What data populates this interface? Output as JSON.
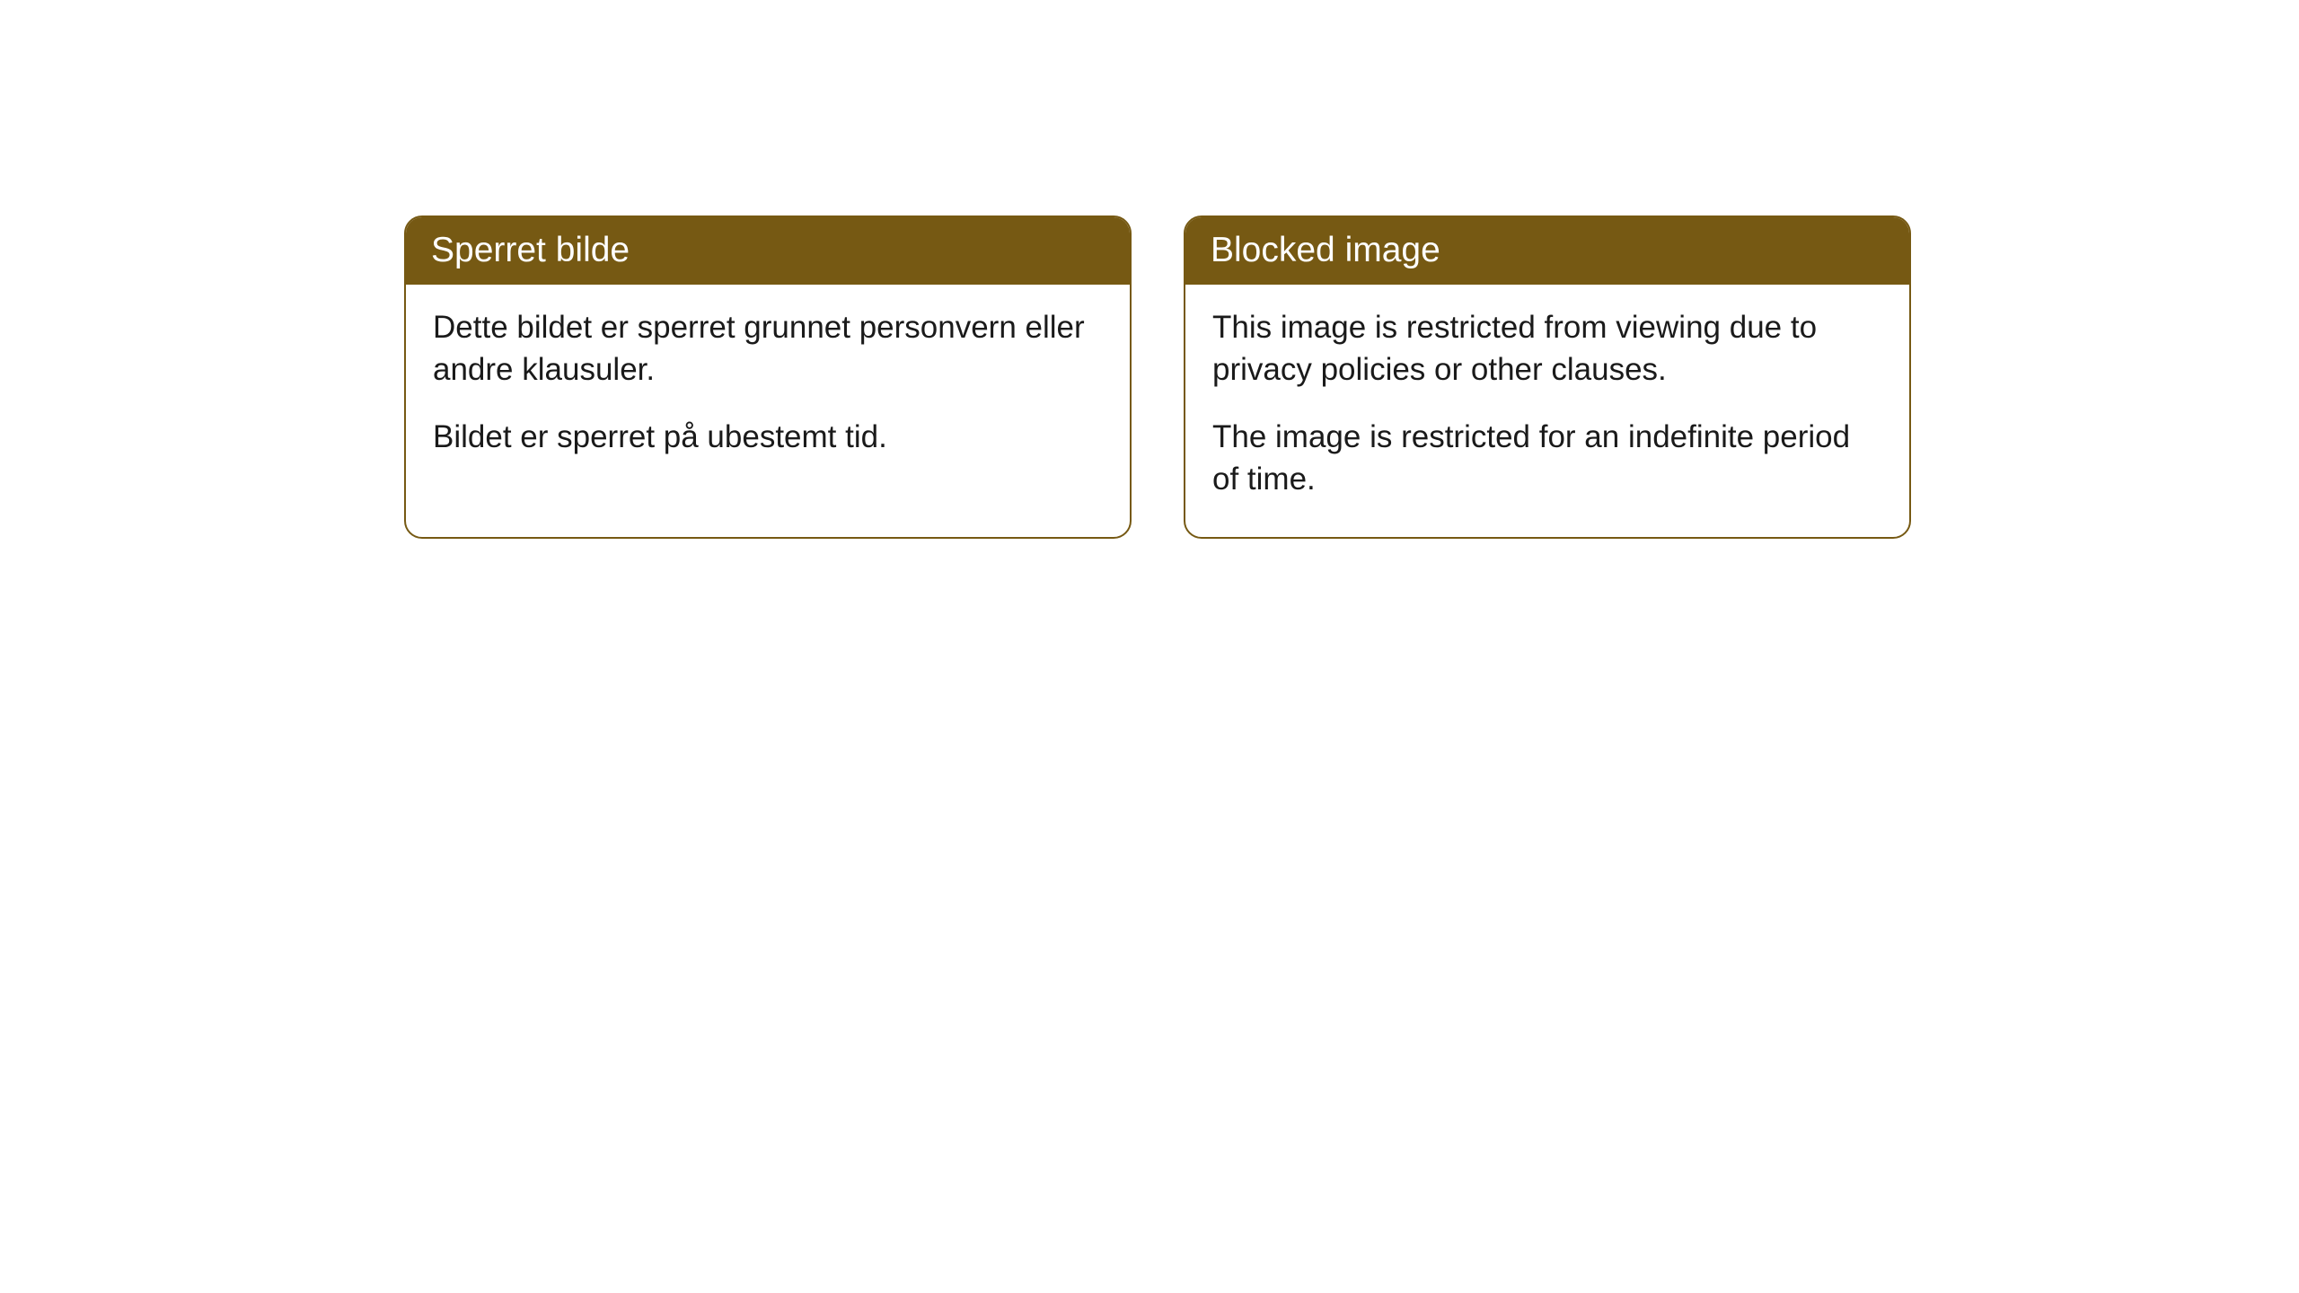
{
  "cards": {
    "left": {
      "header": "Sperret bilde",
      "paragraph1": "Dette bildet er sperret grunnet personvern eller andre klausuler.",
      "paragraph2": "Bildet er sperret på ubestemt tid."
    },
    "right": {
      "header": "Blocked image",
      "paragraph1": "This image is restricted from viewing due to privacy policies or other clauses.",
      "paragraph2": "The image is restricted for an indefinite period of time."
    }
  },
  "styles": {
    "header_bg_color": "#765913",
    "header_text_color": "#ffffff",
    "border_color": "#765913",
    "body_text_color": "#1a1a1a",
    "card_bg_color": "#ffffff",
    "page_bg_color": "#ffffff",
    "border_radius": 20,
    "header_fontsize": 39,
    "body_fontsize": 35
  }
}
